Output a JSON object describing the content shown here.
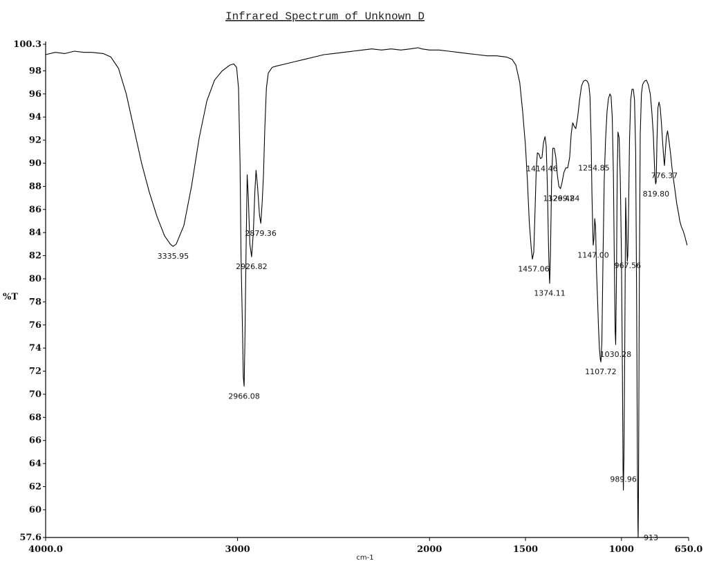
{
  "chart_data": {
    "type": "line",
    "title": "Infrared Spectrum of Unknown D",
    "ylabel": "%T",
    "xlabel": "cm-1",
    "xlim": [
      4000.0,
      650.0
    ],
    "ylim": [
      57.6,
      100.3
    ],
    "x_reversed": true,
    "grid": false,
    "x_ticks": [
      {
        "value": 4000,
        "label": "4000.0"
      },
      {
        "value": 3000,
        "label": "3000"
      },
      {
        "value": 2000,
        "label": "2000"
      },
      {
        "value": 1500,
        "label": "1500"
      },
      {
        "value": 1000,
        "label": "1000"
      },
      {
        "value": 650,
        "label": "650.0"
      }
    ],
    "y_ticks": [
      {
        "value": 100.3,
        "label": "100.3"
      },
      {
        "value": 98,
        "label": "98"
      },
      {
        "value": 96,
        "label": "96"
      },
      {
        "value": 94,
        "label": "94"
      },
      {
        "value": 92,
        "label": "92"
      },
      {
        "value": 90,
        "label": "90"
      },
      {
        "value": 88,
        "label": "88"
      },
      {
        "value": 86,
        "label": "86"
      },
      {
        "value": 84,
        "label": "84"
      },
      {
        "value": 82,
        "label": "82"
      },
      {
        "value": 80,
        "label": "80"
      },
      {
        "value": 78,
        "label": "78"
      },
      {
        "value": 76,
        "label": "76"
      },
      {
        "value": 74,
        "label": "74"
      },
      {
        "value": 72,
        "label": "72"
      },
      {
        "value": 70,
        "label": "70"
      },
      {
        "value": 68,
        "label": "68"
      },
      {
        "value": 66,
        "label": "66"
      },
      {
        "value": 64,
        "label": "64"
      },
      {
        "value": 62,
        "label": "62"
      },
      {
        "value": 60,
        "label": "60"
      },
      {
        "value": 57.6,
        "label": "57.6"
      }
    ],
    "series": [
      {
        "points": [
          [
            4000,
            99.4
          ],
          [
            3950,
            99.6
          ],
          [
            3900,
            99.5
          ],
          [
            3850,
            99.7
          ],
          [
            3800,
            99.6
          ],
          [
            3760,
            99.6
          ],
          [
            3700,
            99.5
          ],
          [
            3660,
            99.2
          ],
          [
            3620,
            98.2
          ],
          [
            3580,
            96.0
          ],
          [
            3540,
            93.0
          ],
          [
            3500,
            90.0
          ],
          [
            3460,
            87.5
          ],
          [
            3420,
            85.4
          ],
          [
            3380,
            83.7
          ],
          [
            3350,
            83.0
          ],
          [
            3336,
            82.8
          ],
          [
            3320,
            83.0
          ],
          [
            3280,
            84.6
          ],
          [
            3240,
            88.0
          ],
          [
            3200,
            92.2
          ],
          [
            3160,
            95.4
          ],
          [
            3120,
            97.2
          ],
          [
            3080,
            98.0
          ],
          [
            3040,
            98.5
          ],
          [
            3020,
            98.6
          ],
          [
            3005,
            98.3
          ],
          [
            2995,
            96.5
          ],
          [
            2987,
            90.0
          ],
          [
            2982,
            82.0
          ],
          [
            2975,
            76.0
          ],
          [
            2970,
            71.5
          ],
          [
            2966,
            70.7
          ],
          [
            2962,
            74.5
          ],
          [
            2956,
            82.0
          ],
          [
            2950,
            89.0
          ],
          [
            2944,
            87.0
          ],
          [
            2936,
            83.0
          ],
          [
            2927,
            81.9
          ],
          [
            2918,
            84.0
          ],
          [
            2910,
            87.5
          ],
          [
            2904,
            89.4
          ],
          [
            2896,
            88.0
          ],
          [
            2886,
            85.5
          ],
          [
            2879,
            84.8
          ],
          [
            2872,
            86.5
          ],
          [
            2865,
            89.0
          ],
          [
            2858,
            93.0
          ],
          [
            2850,
            96.5
          ],
          [
            2840,
            97.8
          ],
          [
            2820,
            98.3
          ],
          [
            2800,
            98.4
          ],
          [
            2750,
            98.6
          ],
          [
            2700,
            98.8
          ],
          [
            2650,
            99.0
          ],
          [
            2600,
            99.2
          ],
          [
            2550,
            99.4
          ],
          [
            2500,
            99.5
          ],
          [
            2450,
            99.6
          ],
          [
            2400,
            99.7
          ],
          [
            2350,
            99.8
          ],
          [
            2300,
            99.9
          ],
          [
            2250,
            99.8
          ],
          [
            2200,
            99.9
          ],
          [
            2150,
            99.8
          ],
          [
            2100,
            99.9
          ],
          [
            2060,
            100.0
          ],
          [
            2040,
            99.9
          ],
          [
            2000,
            99.8
          ],
          [
            1950,
            99.8
          ],
          [
            1900,
            99.7
          ],
          [
            1850,
            99.6
          ],
          [
            1800,
            99.5
          ],
          [
            1750,
            99.4
          ],
          [
            1700,
            99.3
          ],
          [
            1650,
            99.3
          ],
          [
            1600,
            99.2
          ],
          [
            1570,
            99.0
          ],
          [
            1550,
            98.5
          ],
          [
            1530,
            97.0
          ],
          [
            1515,
            94.5
          ],
          [
            1500,
            91.5
          ],
          [
            1490,
            88.5
          ],
          [
            1480,
            84.8
          ],
          [
            1470,
            82.6
          ],
          [
            1464,
            81.7
          ],
          [
            1457,
            82.3
          ],
          [
            1450,
            86.0
          ],
          [
            1444,
            89.5
          ],
          [
            1438,
            90.9
          ],
          [
            1430,
            90.8
          ],
          [
            1422,
            90.4
          ],
          [
            1414,
            90.5
          ],
          [
            1406,
            91.8
          ],
          [
            1398,
            92.3
          ],
          [
            1392,
            91.5
          ],
          [
            1386,
            88.0
          ],
          [
            1380,
            83.0
          ],
          [
            1376,
            80.2
          ],
          [
            1374,
            79.6
          ],
          [
            1370,
            82.0
          ],
          [
            1364,
            88.5
          ],
          [
            1358,
            91.3
          ],
          [
            1350,
            91.3
          ],
          [
            1342,
            90.5
          ],
          [
            1334,
            89.0
          ],
          [
            1326,
            88.0
          ],
          [
            1318,
            87.8
          ],
          [
            1310,
            88.3
          ],
          [
            1300,
            89.2
          ],
          [
            1290,
            89.6
          ],
          [
            1280,
            89.6
          ],
          [
            1270,
            90.5
          ],
          [
            1262,
            92.5
          ],
          [
            1254,
            93.5
          ],
          [
            1246,
            93.2
          ],
          [
            1238,
            93.0
          ],
          [
            1228,
            94.0
          ],
          [
            1218,
            95.5
          ],
          [
            1208,
            96.7
          ],
          [
            1198,
            97.1
          ],
          [
            1188,
            97.2
          ],
          [
            1178,
            97.1
          ],
          [
            1170,
            96.8
          ],
          [
            1164,
            95.8
          ],
          [
            1158,
            92.0
          ],
          [
            1154,
            87.5
          ],
          [
            1150,
            84.5
          ],
          [
            1147,
            82.9
          ],
          [
            1143,
            83.5
          ],
          [
            1139,
            85.2
          ],
          [
            1135,
            84.5
          ],
          [
            1130,
            80.8
          ],
          [
            1125,
            78.5
          ],
          [
            1120,
            76.0
          ],
          [
            1115,
            74.0
          ],
          [
            1110,
            73.0
          ],
          [
            1107,
            72.8
          ],
          [
            1102,
            74.5
          ],
          [
            1096,
            82.0
          ],
          [
            1090,
            88.5
          ],
          [
            1083,
            92.0
          ],
          [
            1075,
            94.5
          ],
          [
            1068,
            95.6
          ],
          [
            1060,
            96.0
          ],
          [
            1054,
            95.8
          ],
          [
            1048,
            94.0
          ],
          [
            1042,
            89.0
          ],
          [
            1037,
            81.0
          ],
          [
            1033,
            75.5
          ],
          [
            1030,
            74.3
          ],
          [
            1026,
            80.0
          ],
          [
            1022,
            89.0
          ],
          [
            1018,
            92.7
          ],
          [
            1012,
            92.2
          ],
          [
            1006,
            88.5
          ],
          [
            1000,
            82.0
          ],
          [
            995,
            72.0
          ],
          [
            992,
            63.5
          ],
          [
            990,
            61.7
          ],
          [
            987,
            64.5
          ],
          [
            983,
            74.0
          ],
          [
            978,
            87.0
          ],
          [
            974,
            84.0
          ],
          [
            970,
            81.5
          ],
          [
            967,
            82.0
          ],
          [
            964,
            84.5
          ],
          [
            958,
            92.0
          ],
          [
            952,
            95.5
          ],
          [
            945,
            96.4
          ],
          [
            938,
            96.4
          ],
          [
            932,
            95.5
          ],
          [
            926,
            91.0
          ],
          [
            921,
            78.0
          ],
          [
            917,
            64.0
          ],
          [
            914,
            58.5
          ],
          [
            913,
            57.6
          ],
          [
            911,
            62.0
          ],
          [
            907,
            80.0
          ],
          [
            902,
            92.5
          ],
          [
            896,
            96.0
          ],
          [
            890,
            96.8
          ],
          [
            880,
            97.1
          ],
          [
            870,
            97.2
          ],
          [
            860,
            96.8
          ],
          [
            850,
            96.0
          ],
          [
            842,
            94.5
          ],
          [
            834,
            92.5
          ],
          [
            826,
            89.0
          ],
          [
            822,
            88.2
          ],
          [
            819,
            88.4
          ],
          [
            815,
            92.0
          ],
          [
            810,
            94.8
          ],
          [
            804,
            95.3
          ],
          [
            798,
            94.8
          ],
          [
            792,
            93.5
          ],
          [
            786,
            92.0
          ],
          [
            780,
            90.5
          ],
          [
            776,
            89.8
          ],
          [
            772,
            90.8
          ],
          [
            766,
            92.3
          ],
          [
            760,
            92.8
          ],
          [
            752,
            91.9
          ],
          [
            744,
            90.8
          ],
          [
            736,
            89.5
          ],
          [
            728,
            88.5
          ],
          [
            720,
            87.5
          ],
          [
            712,
            86.5
          ],
          [
            704,
            85.8
          ],
          [
            696,
            85.0
          ],
          [
            688,
            84.5
          ],
          [
            680,
            84.2
          ],
          [
            672,
            83.8
          ],
          [
            664,
            83.3
          ],
          [
            658,
            82.9
          ]
        ]
      }
    ],
    "annotations": [
      {
        "x": 3335.95,
        "y": 82.8,
        "label": "3335.95",
        "side": "below"
      },
      {
        "x": 2879.36,
        "y": 84.8,
        "label": "2879.36",
        "side": "below"
      },
      {
        "x": 2926.82,
        "y": 81.9,
        "label": "2926.82",
        "side": "below"
      },
      {
        "x": 2966.08,
        "y": 70.7,
        "label": "2966.08",
        "side": "below"
      },
      {
        "x": 1457.06,
        "y": 81.7,
        "label": "1457.06",
        "side": "below"
      },
      {
        "x": 1414.46,
        "y": 90.4,
        "label": "1414.46",
        "side": "below"
      },
      {
        "x": 1374.11,
        "y": 79.6,
        "label": "1374.11",
        "side": "below"
      },
      {
        "x": 1326.42,
        "y": 87.8,
        "label": "1326.42",
        "side": "below"
      },
      {
        "x": 1299.84,
        "y": 87.8,
        "label": "1299.84",
        "side": "below"
      },
      {
        "x": 1254.85,
        "y": 89.6,
        "label": "1254.85",
        "side": "right"
      },
      {
        "x": 1147.0,
        "y": 82.9,
        "label": "1147.00",
        "side": "below"
      },
      {
        "x": 1107.72,
        "y": 72.8,
        "label": "1107.72",
        "side": "below"
      },
      {
        "x": 1030.28,
        "y": 74.3,
        "label": "1030.28",
        "side": "below"
      },
      {
        "x": 967.56,
        "y": 82.0,
        "label": "967.56",
        "side": "below"
      },
      {
        "x": 989.96,
        "y": 61.7,
        "label": "989.96",
        "side": "above"
      },
      {
        "x": 913,
        "y": 57.6,
        "label": "913",
        "side": "right"
      },
      {
        "x": 819.8,
        "y": 88.2,
        "label": "819.80",
        "side": "below"
      },
      {
        "x": 776.37,
        "y": 89.8,
        "label": "776.37",
        "side": "below"
      }
    ]
  }
}
